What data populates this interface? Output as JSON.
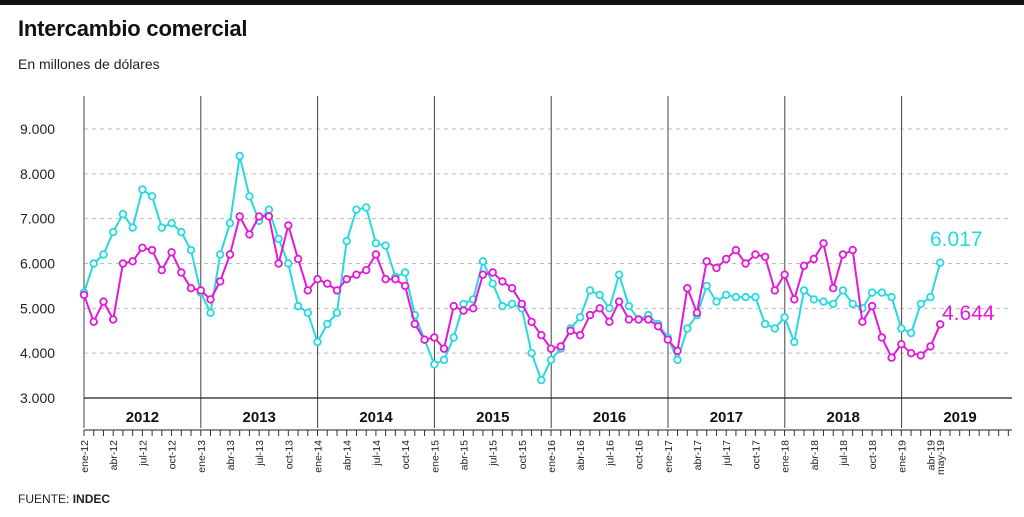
{
  "title": "Intercambio comercial",
  "subtitle": "En millones de dólares",
  "source_label": "FUENTE:",
  "source_name": "INDEC",
  "colors": {
    "exports": "#e21ad8",
    "imports": "#28d9df",
    "text": "#222222",
    "grid": "#bdbdbd"
  },
  "chart_data": {
    "type": "line",
    "title": "Intercambio comercial",
    "subtitle": "En millones de dólares",
    "xlabel": "",
    "ylabel": "",
    "ylim": [
      3000,
      9700
    ],
    "yticks": [
      3000,
      4000,
      5000,
      6000,
      7000,
      8000,
      9000
    ],
    "ytick_labels": [
      "3.000",
      "4.000",
      "5.000",
      "6.000",
      "7.000",
      "8.000",
      "9.000"
    ],
    "grid": true,
    "legend": "none",
    "years": [
      "2012",
      "2013",
      "2014",
      "2015",
      "2016",
      "2017",
      "2018",
      "2019"
    ],
    "x_tick_labels": [
      {
        "i": 0,
        "label": "ene-12"
      },
      {
        "i": 3,
        "label": "abr-12"
      },
      {
        "i": 6,
        "label": "jul-12"
      },
      {
        "i": 9,
        "label": "oct-12"
      },
      {
        "i": 12,
        "label": "ene-13"
      },
      {
        "i": 15,
        "label": "abr-13"
      },
      {
        "i": 18,
        "label": "jul-13"
      },
      {
        "i": 21,
        "label": "oct-13"
      },
      {
        "i": 24,
        "label": "ene-14"
      },
      {
        "i": 27,
        "label": "abr-14"
      },
      {
        "i": 30,
        "label": "jul-14"
      },
      {
        "i": 33,
        "label": "oct-14"
      },
      {
        "i": 36,
        "label": "ene-15"
      },
      {
        "i": 39,
        "label": "abr-15"
      },
      {
        "i": 42,
        "label": "jul-15"
      },
      {
        "i": 45,
        "label": "oct-15"
      },
      {
        "i": 48,
        "label": "ene-16"
      },
      {
        "i": 51,
        "label": "abr-16"
      },
      {
        "i": 54,
        "label": "jul-16"
      },
      {
        "i": 57,
        "label": "oct-16"
      },
      {
        "i": 60,
        "label": "ene-17"
      },
      {
        "i": 63,
        "label": "abr-17"
      },
      {
        "i": 66,
        "label": "jul-17"
      },
      {
        "i": 69,
        "label": "oct-17"
      },
      {
        "i": 72,
        "label": "ene-18"
      },
      {
        "i": 75,
        "label": "abr-18"
      },
      {
        "i": 78,
        "label": "jul-18"
      },
      {
        "i": 81,
        "label": "oct-18"
      },
      {
        "i": 84,
        "label": "ene-19"
      },
      {
        "i": 87,
        "label": "abr-19"
      },
      {
        "i": 88,
        "label": "may-19"
      }
    ],
    "series": [
      {
        "key": "imports",
        "color": "#28d9df",
        "end_label": "6.017",
        "values": [
          5350,
          6000,
          6200,
          6700,
          7100,
          6800,
          7650,
          7500,
          6800,
          6900,
          6700,
          6300,
          5350,
          4900,
          6200,
          6900,
          8400,
          7500,
          6950,
          7200,
          6550,
          6000,
          5050,
          4900,
          4250,
          4650,
          4900,
          6500,
          7200,
          7250,
          6450,
          6400,
          5700,
          5800,
          4850,
          4300,
          3750,
          3850,
          4350,
          5100,
          5200,
          6050,
          5550,
          5050,
          5100,
          5000,
          4000,
          3400,
          3850,
          4100,
          4550,
          4800,
          5400,
          5300,
          5000,
          5750,
          5050,
          4750,
          4850,
          4650,
          4350,
          3850,
          4550,
          4850,
          5500,
          5150,
          5300,
          5250,
          5250,
          5250,
          4650,
          4550,
          4800,
          4250,
          5400,
          5200,
          5150,
          5100,
          5400,
          5100,
          5000,
          5350,
          5350,
          5250,
          4550,
          4450,
          5100,
          5250,
          6017
        ]
      },
      {
        "key": "exports",
        "color": "#e21ad8",
        "end_label": "4.644",
        "values": [
          5300,
          4700,
          5150,
          4750,
          6000,
          6050,
          6350,
          6300,
          5850,
          6250,
          5800,
          5450,
          5400,
          5200,
          5600,
          6200,
          7050,
          6650,
          7050,
          7050,
          6000,
          6850,
          6100,
          5400,
          5650,
          5550,
          5400,
          5650,
          5750,
          5850,
          6200,
          5650,
          5650,
          5500,
          4650,
          4300,
          4350,
          4100,
          5050,
          4950,
          5000,
          5750,
          5800,
          5600,
          5450,
          5100,
          4700,
          4400,
          4100,
          4150,
          4500,
          4400,
          4850,
          5000,
          4700,
          5150,
          4750,
          4750,
          4750,
          4600,
          4300,
          4050,
          5450,
          4900,
          6050,
          5900,
          6100,
          6300,
          6000,
          6200,
          6150,
          5400,
          5750,
          5200,
          5950,
          6100,
          6450,
          5450,
          6200,
          6300,
          4700,
          5050,
          4350,
          3900,
          4200,
          4000,
          3950,
          4150,
          4644
        ]
      }
    ]
  }
}
